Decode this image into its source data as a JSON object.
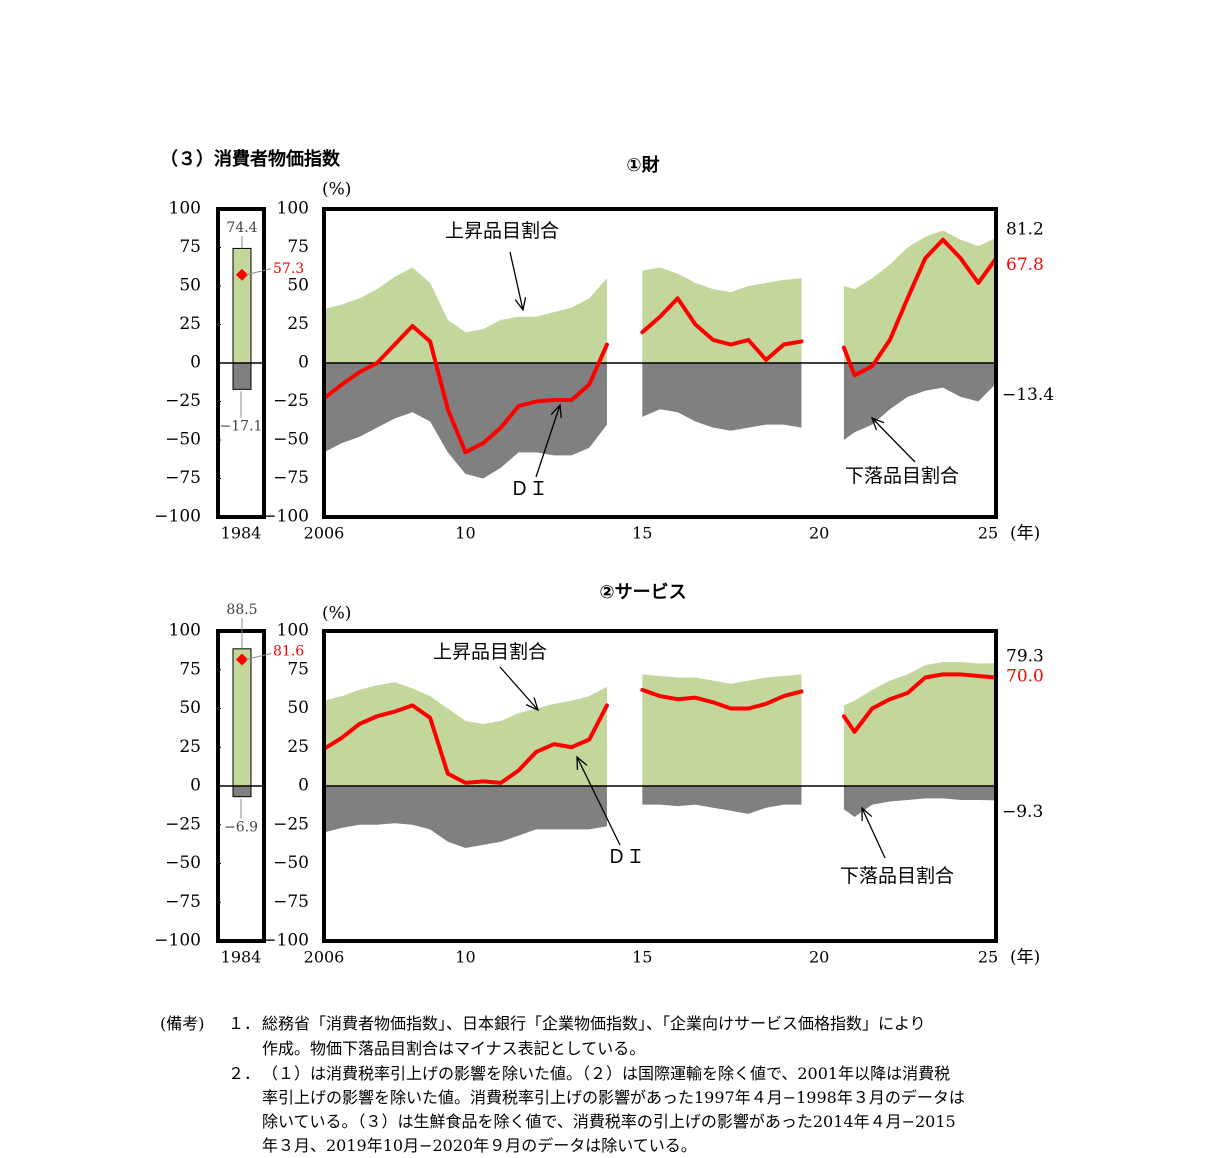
{
  "section_title": "（３）消費者物価指数",
  "x_axis_unit": "(年)",
  "y_axis_unit": "(%)",
  "y_ticks": [
    100,
    75,
    50,
    25,
    0,
    -25,
    -50,
    -75,
    -100
  ],
  "x_ticks": [
    {
      "year": 2006,
      "label": "2006"
    },
    {
      "year": 2010,
      "label": "10"
    },
    {
      "year": 2015,
      "label": "15"
    },
    {
      "year": 2020,
      "label": "20"
    },
    {
      "year": 2025,
      "label": "25"
    }
  ],
  "colors": {
    "rise": "#c3d69b",
    "fall": "#808080",
    "di": "#ff0000",
    "frame": "#000000"
  },
  "chart_data": [
    {
      "type": "area",
      "title": "①財",
      "ylim": [
        -100,
        100
      ],
      "xlim": [
        2006,
        2025
      ],
      "legend_labels": {
        "rise": "上昇品目割合",
        "fall": "下落品目割合",
        "di": "ＤＩ"
      },
      "bench": {
        "year_label": "1984",
        "rise": 74.4,
        "fall": -17.1,
        "di": 57.3,
        "rise_label": "74.4",
        "fall_label": "−17.1",
        "di_label": "57.3"
      },
      "latest": {
        "rise_label": "81.2",
        "di_label": "67.8",
        "fall_label": "−13.4"
      },
      "segments": [
        {
          "x": [
            2006.0,
            2006.5,
            2007.0,
            2007.5,
            2008.0,
            2008.5,
            2009.0,
            2009.5,
            2010.0,
            2010.5,
            2011.0,
            2011.5,
            2012.0,
            2012.5,
            2013.0,
            2013.5,
            2014.0
          ],
          "rise": [
            35,
            38,
            42,
            48,
            56,
            62,
            52,
            28,
            20,
            22,
            28,
            30,
            30,
            33,
            36,
            42,
            55
          ],
          "fall": [
            -58,
            -52,
            -48,
            -42,
            -36,
            -32,
            -38,
            -58,
            -72,
            -75,
            -68,
            -58,
            -58,
            -60,
            -60,
            -55,
            -40
          ],
          "di": [
            -23,
            -14,
            -6,
            0,
            12,
            24,
            14,
            -30,
            -58,
            -52,
            -42,
            -28,
            -25,
            -24,
            -24,
            -14,
            12
          ]
        },
        {
          "x": [
            2015.0,
            2015.5,
            2016.0,
            2016.5,
            2017.0,
            2017.5,
            2018.0,
            2018.5,
            2019.0,
            2019.5
          ],
          "rise": [
            60,
            62,
            58,
            52,
            48,
            46,
            50,
            52,
            54,
            55
          ],
          "fall": [
            -35,
            -30,
            -32,
            -38,
            -42,
            -44,
            -42,
            -40,
            -40,
            -42
          ],
          "di": [
            20,
            30,
            42,
            25,
            15,
            12,
            15,
            2,
            12,
            14
          ]
        },
        {
          "x": [
            2020.7,
            2021.0,
            2021.5,
            2022.0,
            2022.5,
            2023.0,
            2023.5,
            2024.0,
            2024.5,
            2025.0
          ],
          "rise": [
            50,
            48,
            55,
            64,
            75,
            82,
            86,
            80,
            76,
            81.2
          ],
          "fall": [
            -50,
            -45,
            -40,
            -30,
            -22,
            -18,
            -16,
            -22,
            -25,
            -13.4
          ],
          "di": [
            10,
            -8,
            -2,
            15,
            42,
            68,
            80,
            68,
            52,
            67.8
          ]
        }
      ]
    },
    {
      "type": "area",
      "title": "②サービス",
      "ylim": [
        -100,
        100
      ],
      "xlim": [
        2006,
        2025
      ],
      "legend_labels": {
        "rise": "上昇品目割合",
        "fall": "下落品目割合",
        "di": "ＤＩ"
      },
      "bench": {
        "year_label": "1984",
        "rise": 88.5,
        "fall": -6.9,
        "di": 81.6,
        "rise_label": "88.5",
        "fall_label": "−6.9",
        "di_label": "81.6"
      },
      "latest": {
        "rise_label": "79.3",
        "di_label": "70.0",
        "fall_label": "−9.3"
      },
      "segments": [
        {
          "x": [
            2006.0,
            2006.5,
            2007.0,
            2007.5,
            2008.0,
            2008.5,
            2009.0,
            2009.5,
            2010.0,
            2010.5,
            2011.0,
            2011.5,
            2012.0,
            2012.5,
            2013.0,
            2013.5,
            2014.0
          ],
          "rise": [
            55,
            58,
            62,
            65,
            67,
            63,
            58,
            50,
            42,
            40,
            42,
            47,
            50,
            53,
            55,
            58,
            64
          ],
          "fall": [
            -30,
            -27,
            -25,
            -25,
            -24,
            -25,
            -28,
            -36,
            -40,
            -38,
            -36,
            -32,
            -28,
            -28,
            -28,
            -28,
            -26
          ],
          "di": [
            24,
            31,
            40,
            45,
            48,
            52,
            44,
            8,
            2,
            3,
            2,
            10,
            22,
            27,
            25,
            30,
            52
          ]
        },
        {
          "x": [
            2015.0,
            2015.5,
            2016.0,
            2016.5,
            2017.0,
            2017.5,
            2018.0,
            2018.5,
            2019.0,
            2019.5
          ],
          "rise": [
            72,
            71,
            70,
            70,
            68,
            66,
            68,
            70,
            71,
            72
          ],
          "fall": [
            -12,
            -12,
            -13,
            -12,
            -14,
            -16,
            -18,
            -14,
            -12,
            -12
          ],
          "di": [
            62,
            58,
            56,
            57,
            54,
            50,
            50,
            53,
            58,
            61
          ]
        },
        {
          "x": [
            2020.7,
            2021.0,
            2021.5,
            2022.0,
            2022.5,
            2023.0,
            2023.5,
            2024.0,
            2024.5,
            2025.0
          ],
          "rise": [
            52,
            55,
            62,
            68,
            72,
            78,
            80,
            80,
            79,
            79.3
          ],
          "fall": [
            -15,
            -20,
            -12,
            -10,
            -9,
            -8,
            -8,
            -9,
            -9,
            -9.3
          ],
          "di": [
            45,
            35,
            50,
            56,
            60,
            70,
            72,
            72,
            71,
            70.0
          ]
        }
      ]
    }
  ],
  "notes": {
    "label": "(備考)",
    "items": [
      {
        "num": "１．",
        "lines": [
          "総務省「消費者物価指数」、日本銀行「企業物価指数」、「企業向けサービス価格指数」により",
          "作成。物価下落品目割合はマイナス表記としている。"
        ]
      },
      {
        "num": "２．",
        "lines": [
          "（１）は消費税率引上げの影響を除いた値。（２）は国際運輸を除く値で、2001年以降は消費税",
          "率引上げの影響を除いた値。消費税率引上げの影響があった1997年４月−1998年３月のデータは",
          "除いている。（３）は生鮮食品を除く値で、消費税率の引上げの影響があった2014年４月−2015",
          "年３月、2019年10月−2020年９月のデータは除いている。"
        ]
      }
    ]
  }
}
